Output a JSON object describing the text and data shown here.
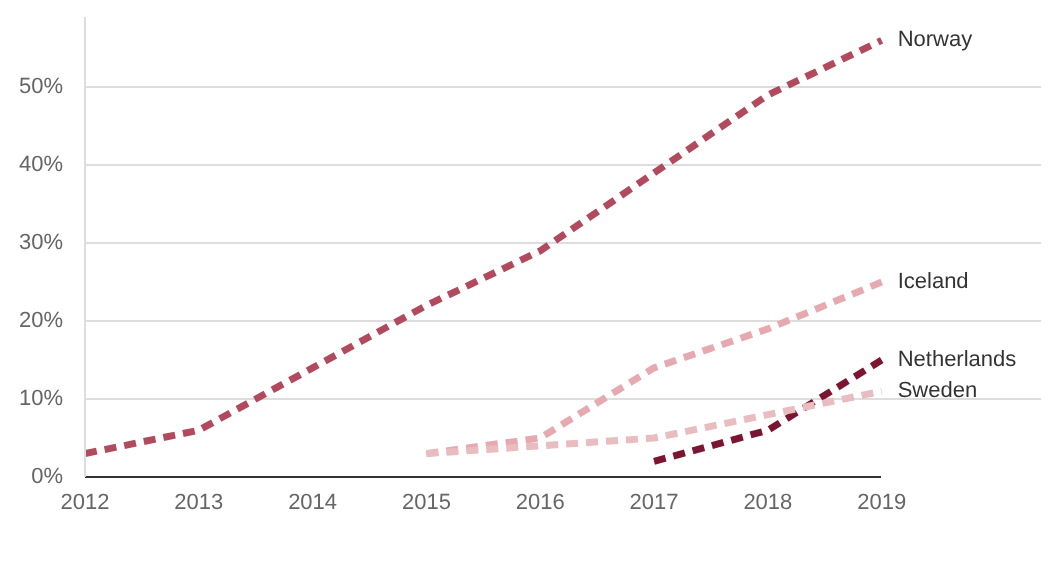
{
  "chart_data": {
    "type": "line",
    "x": [
      2012,
      2013,
      2014,
      2015,
      2016,
      2017,
      2018,
      2019
    ],
    "series": [
      {
        "name": "Norway",
        "color": "#b24a5e",
        "values": [
          3,
          6,
          14,
          22,
          29,
          39,
          49,
          56
        ]
      },
      {
        "name": "Iceland",
        "color": "#e6a9b0",
        "values": [
          null,
          null,
          null,
          3,
          5,
          14,
          19,
          25
        ]
      },
      {
        "name": "Netherlands",
        "color": "#7b1531",
        "values": [
          null,
          null,
          null,
          null,
          null,
          2,
          6,
          15
        ]
      },
      {
        "name": "Sweden",
        "color": "#e9bcc0",
        "values": [
          null,
          null,
          null,
          3,
          4,
          5,
          8,
          11
        ]
      }
    ],
    "xlim": [
      2012,
      2019
    ],
    "xticks": [
      2012,
      2013,
      2014,
      2015,
      2016,
      2017,
      2018,
      2019
    ],
    "yticks": [
      {
        "value": 0,
        "label": "0%"
      },
      {
        "value": 10,
        "label": "10%"
      },
      {
        "value": 20,
        "label": "20%"
      },
      {
        "value": 30,
        "label": "30%"
      },
      {
        "value": 40,
        "label": "40%"
      },
      {
        "value": 50,
        "label": "50%"
      }
    ],
    "ylim": [
      0,
      59
    ],
    "grid": "y",
    "line_style": "dashed",
    "marker": "none"
  }
}
